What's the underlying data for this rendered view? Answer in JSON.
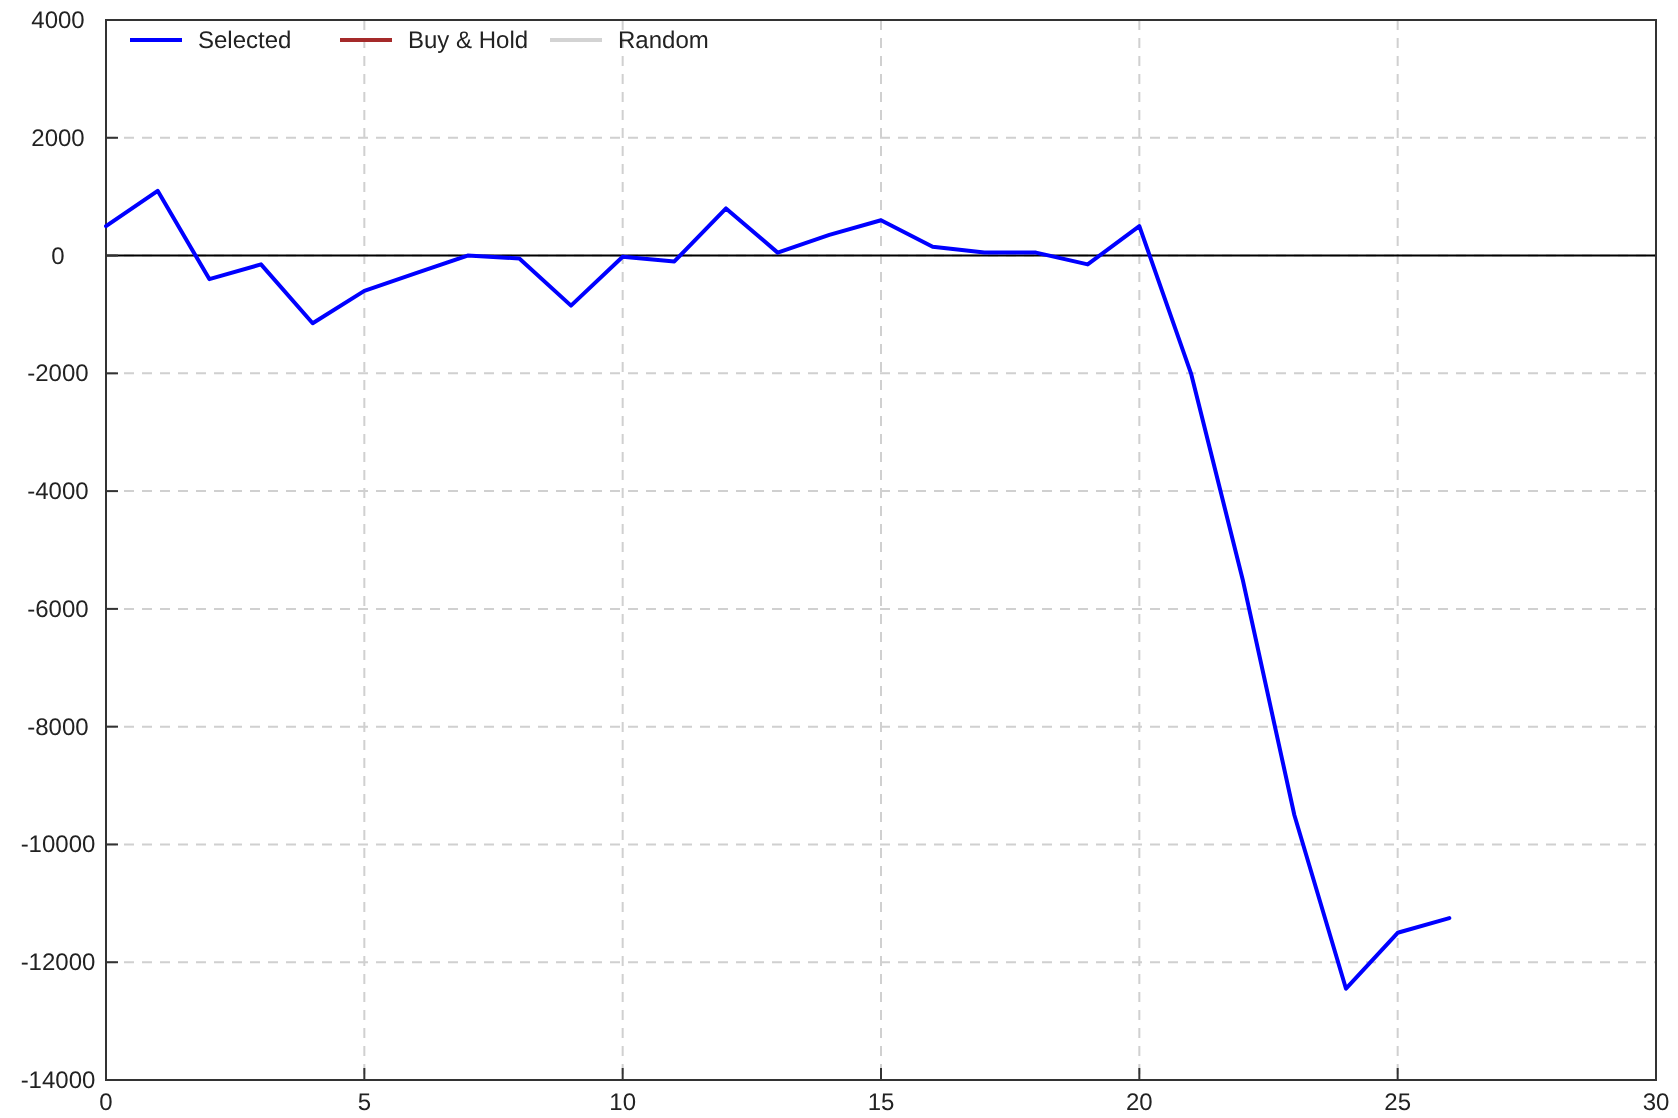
{
  "chart_data": {
    "type": "line",
    "x": [
      0,
      1,
      2,
      3,
      4,
      5,
      6,
      7,
      8,
      9,
      10,
      11,
      12,
      13,
      14,
      15,
      16,
      17,
      18,
      19,
      20,
      21,
      22,
      23,
      24,
      25,
      26
    ],
    "series": [
      {
        "name": "Selected",
        "color": "#0000ff",
        "values": [
          500,
          1100,
          -400,
          -150,
          -1150,
          -600,
          -300,
          0,
          -50,
          -850,
          -20,
          -100,
          800,
          50,
          350,
          600,
          150,
          50,
          50,
          -150,
          500,
          -2000,
          -5500,
          -9500,
          -12450,
          -11500,
          -11250
        ]
      },
      {
        "name": "Buy & Hold",
        "color": "#a52a2a",
        "values": [
          null,
          null,
          null,
          null,
          null,
          null,
          null,
          null,
          null,
          null,
          null,
          null,
          null,
          null,
          null,
          null,
          null,
          null,
          null,
          null,
          null,
          null,
          null,
          null,
          null,
          null,
          null
        ]
      },
      {
        "name": "Random",
        "color": "#d3d3d3",
        "values": [
          null,
          null,
          null,
          null,
          null,
          null,
          null,
          null,
          null,
          null,
          null,
          null,
          null,
          null,
          null,
          null,
          null,
          null,
          null,
          null,
          null,
          null,
          null,
          null,
          null,
          null,
          null
        ]
      }
    ],
    "xlim": [
      0,
      30
    ],
    "xticks": [
      0,
      5,
      10,
      15,
      20,
      25,
      30
    ],
    "ylim": [
      -14000,
      4000
    ],
    "yticks": [
      -14000,
      -12000,
      -10000,
      -8000,
      -6000,
      -4000,
      -2000,
      0,
      2000,
      4000
    ],
    "ref_lines": [
      {
        "axis": "y",
        "value": 0,
        "color": "#000000"
      }
    ],
    "grid": true,
    "legend": "top left"
  }
}
